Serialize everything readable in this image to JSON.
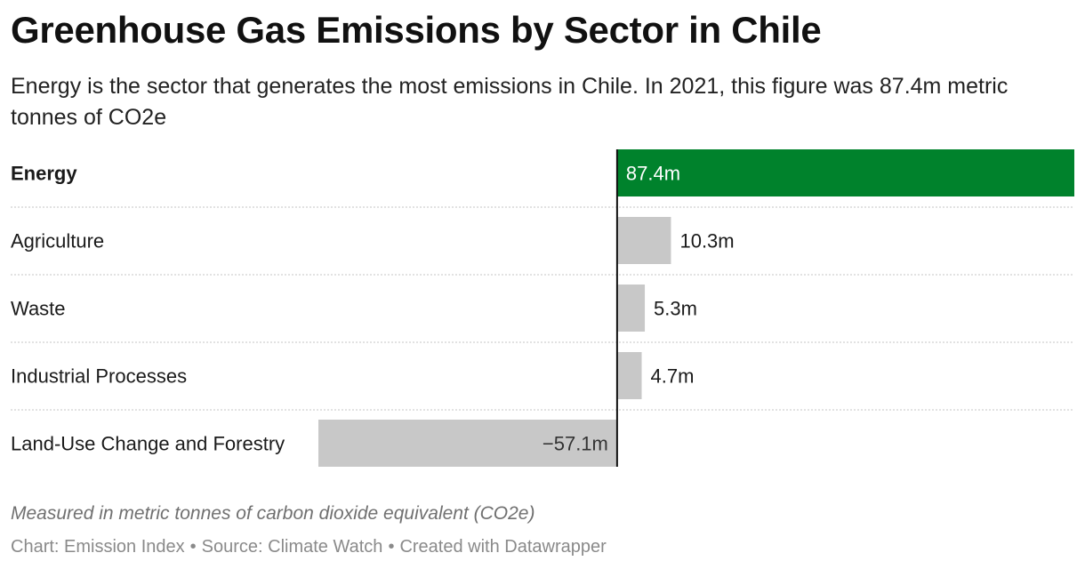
{
  "title": "Greenhouse Gas Emissions by Sector in Chile",
  "subtitle": "Energy is the sector that generates the most emissions in Chile. In 2021, this figure was 87.4m metric tonnes of CO2e",
  "notes": "Measured in metric tonnes of carbon dioxide equivalent (CO2e)",
  "footer": {
    "chart_credit": "Chart: Emission Index",
    "source": "Source: Climate Watch",
    "tool": "Created with Datawrapper",
    "separator": "•"
  },
  "colors": {
    "highlight": "#00822c",
    "default_bar": "#c8c8c8",
    "axis": "#111111",
    "divider": "#c4c4c4"
  },
  "chart_data": {
    "type": "bar",
    "orientation": "horizontal",
    "categories": [
      "Energy",
      "Agriculture",
      "Waste",
      "Industrial Processes",
      "Land-Use Change and Forestry"
    ],
    "values": [
      87.4,
      10.3,
      5.3,
      4.7,
      -57.1
    ],
    "value_labels": [
      "87.4m",
      "10.3m",
      "5.3m",
      "4.7m",
      "−57.1m"
    ],
    "highlighted": [
      "Energy"
    ],
    "xlim": [
      -57.1,
      87.4
    ],
    "grid": false
  }
}
